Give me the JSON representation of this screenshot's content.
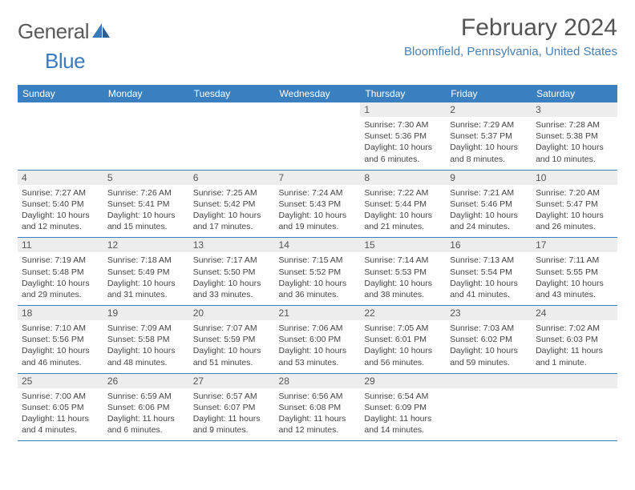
{
  "logo": {
    "part1": "General",
    "part2": "Blue"
  },
  "title": "February 2024",
  "location": "Bloomfield, Pennsylvania, United States",
  "colors": {
    "header_bg": "#3a7fc0",
    "header_text": "#ffffff",
    "daynum_bg": "#ededed",
    "border": "#3a7fc0",
    "location_text": "#4a7fb5",
    "title_text": "#555555",
    "body_text": "#444444",
    "logo_gray": "#5b5b5b",
    "logo_blue": "#3a7bbf"
  },
  "day_headers": [
    "Sunday",
    "Monday",
    "Tuesday",
    "Wednesday",
    "Thursday",
    "Friday",
    "Saturday"
  ],
  "weeks": [
    [
      null,
      null,
      null,
      null,
      {
        "n": "1",
        "sunrise": "7:30 AM",
        "sunset": "5:36 PM",
        "daylight": "10 hours and 6 minutes."
      },
      {
        "n": "2",
        "sunrise": "7:29 AM",
        "sunset": "5:37 PM",
        "daylight": "10 hours and 8 minutes."
      },
      {
        "n": "3",
        "sunrise": "7:28 AM",
        "sunset": "5:38 PM",
        "daylight": "10 hours and 10 minutes."
      }
    ],
    [
      {
        "n": "4",
        "sunrise": "7:27 AM",
        "sunset": "5:40 PM",
        "daylight": "10 hours and 12 minutes."
      },
      {
        "n": "5",
        "sunrise": "7:26 AM",
        "sunset": "5:41 PM",
        "daylight": "10 hours and 15 minutes."
      },
      {
        "n": "6",
        "sunrise": "7:25 AM",
        "sunset": "5:42 PM",
        "daylight": "10 hours and 17 minutes."
      },
      {
        "n": "7",
        "sunrise": "7:24 AM",
        "sunset": "5:43 PM",
        "daylight": "10 hours and 19 minutes."
      },
      {
        "n": "8",
        "sunrise": "7:22 AM",
        "sunset": "5:44 PM",
        "daylight": "10 hours and 21 minutes."
      },
      {
        "n": "9",
        "sunrise": "7:21 AM",
        "sunset": "5:46 PM",
        "daylight": "10 hours and 24 minutes."
      },
      {
        "n": "10",
        "sunrise": "7:20 AM",
        "sunset": "5:47 PM",
        "daylight": "10 hours and 26 minutes."
      }
    ],
    [
      {
        "n": "11",
        "sunrise": "7:19 AM",
        "sunset": "5:48 PM",
        "daylight": "10 hours and 29 minutes."
      },
      {
        "n": "12",
        "sunrise": "7:18 AM",
        "sunset": "5:49 PM",
        "daylight": "10 hours and 31 minutes."
      },
      {
        "n": "13",
        "sunrise": "7:17 AM",
        "sunset": "5:50 PM",
        "daylight": "10 hours and 33 minutes."
      },
      {
        "n": "14",
        "sunrise": "7:15 AM",
        "sunset": "5:52 PM",
        "daylight": "10 hours and 36 minutes."
      },
      {
        "n": "15",
        "sunrise": "7:14 AM",
        "sunset": "5:53 PM",
        "daylight": "10 hours and 38 minutes."
      },
      {
        "n": "16",
        "sunrise": "7:13 AM",
        "sunset": "5:54 PM",
        "daylight": "10 hours and 41 minutes."
      },
      {
        "n": "17",
        "sunrise": "7:11 AM",
        "sunset": "5:55 PM",
        "daylight": "10 hours and 43 minutes."
      }
    ],
    [
      {
        "n": "18",
        "sunrise": "7:10 AM",
        "sunset": "5:56 PM",
        "daylight": "10 hours and 46 minutes."
      },
      {
        "n": "19",
        "sunrise": "7:09 AM",
        "sunset": "5:58 PM",
        "daylight": "10 hours and 48 minutes."
      },
      {
        "n": "20",
        "sunrise": "7:07 AM",
        "sunset": "5:59 PM",
        "daylight": "10 hours and 51 minutes."
      },
      {
        "n": "21",
        "sunrise": "7:06 AM",
        "sunset": "6:00 PM",
        "daylight": "10 hours and 53 minutes."
      },
      {
        "n": "22",
        "sunrise": "7:05 AM",
        "sunset": "6:01 PM",
        "daylight": "10 hours and 56 minutes."
      },
      {
        "n": "23",
        "sunrise": "7:03 AM",
        "sunset": "6:02 PM",
        "daylight": "10 hours and 59 minutes."
      },
      {
        "n": "24",
        "sunrise": "7:02 AM",
        "sunset": "6:03 PM",
        "daylight": "11 hours and 1 minute."
      }
    ],
    [
      {
        "n": "25",
        "sunrise": "7:00 AM",
        "sunset": "6:05 PM",
        "daylight": "11 hours and 4 minutes."
      },
      {
        "n": "26",
        "sunrise": "6:59 AM",
        "sunset": "6:06 PM",
        "daylight": "11 hours and 6 minutes."
      },
      {
        "n": "27",
        "sunrise": "6:57 AM",
        "sunset": "6:07 PM",
        "daylight": "11 hours and 9 minutes."
      },
      {
        "n": "28",
        "sunrise": "6:56 AM",
        "sunset": "6:08 PM",
        "daylight": "11 hours and 12 minutes."
      },
      {
        "n": "29",
        "sunrise": "6:54 AM",
        "sunset": "6:09 PM",
        "daylight": "11 hours and 14 minutes."
      },
      null,
      null
    ]
  ],
  "labels": {
    "sunrise": "Sunrise:",
    "sunset": "Sunset:",
    "daylight": "Daylight:"
  }
}
